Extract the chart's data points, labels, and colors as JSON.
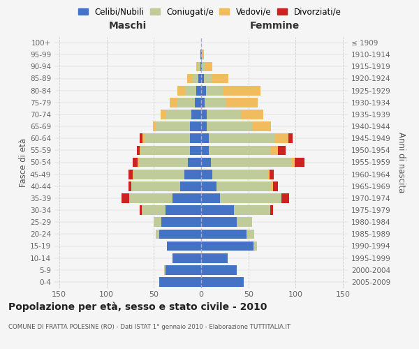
{
  "age_groups": [
    "0-4",
    "5-9",
    "10-14",
    "15-19",
    "20-24",
    "25-29",
    "30-34",
    "35-39",
    "40-44",
    "45-49",
    "50-54",
    "55-59",
    "60-64",
    "65-69",
    "70-74",
    "75-79",
    "80-84",
    "85-89",
    "90-94",
    "95-99",
    "100+"
  ],
  "birth_years": [
    "2005-2009",
    "2000-2004",
    "1995-1999",
    "1990-1994",
    "1985-1989",
    "1980-1984",
    "1975-1979",
    "1970-1974",
    "1965-1969",
    "1960-1964",
    "1955-1959",
    "1950-1954",
    "1945-1949",
    "1940-1944",
    "1935-1939",
    "1930-1934",
    "1925-1929",
    "1920-1924",
    "1915-1919",
    "1910-1914",
    "≤ 1909"
  ],
  "colors": {
    "celibi": "#4472C4",
    "coniugati": "#BFCC99",
    "vedovi": "#F0BC5E",
    "divorziati": "#CC2222"
  },
  "male": {
    "celibi": [
      44,
      38,
      30,
      36,
      44,
      42,
      38,
      30,
      22,
      18,
      14,
      12,
      12,
      12,
      10,
      7,
      5,
      3,
      1,
      1,
      0
    ],
    "coniugati": [
      0,
      1,
      0,
      0,
      4,
      8,
      25,
      46,
      52,
      53,
      52,
      52,
      48,
      36,
      28,
      18,
      12,
      6,
      2,
      0,
      0
    ],
    "vedovi": [
      0,
      0,
      0,
      0,
      0,
      0,
      0,
      0,
      0,
      1,
      1,
      1,
      2,
      3,
      5,
      8,
      8,
      6,
      2,
      0,
      0
    ],
    "divorziati": [
      0,
      0,
      0,
      0,
      0,
      0,
      2,
      8,
      3,
      5,
      5,
      3,
      3,
      0,
      0,
      0,
      0,
      0,
      0,
      0,
      0
    ]
  },
  "female": {
    "celibi": [
      45,
      38,
      28,
      55,
      48,
      38,
      35,
      20,
      16,
      12,
      10,
      8,
      8,
      6,
      6,
      4,
      5,
      3,
      1,
      1,
      0
    ],
    "coniugati": [
      0,
      0,
      0,
      4,
      8,
      16,
      38,
      65,
      58,
      58,
      85,
      65,
      70,
      48,
      36,
      22,
      18,
      8,
      3,
      0,
      0
    ],
    "vedovi": [
      0,
      0,
      0,
      0,
      0,
      0,
      0,
      0,
      2,
      2,
      4,
      8,
      14,
      20,
      24,
      34,
      40,
      18,
      8,
      2,
      0
    ],
    "divorziati": [
      0,
      0,
      0,
      0,
      0,
      0,
      3,
      8,
      5,
      5,
      10,
      8,
      5,
      0,
      0,
      0,
      0,
      0,
      0,
      0,
      0
    ]
  },
  "title": "Popolazione per età, sesso e stato civile - 2010",
  "subtitle": "COMUNE DI FRATTA POLESINE (RO) - Dati ISTAT 1° gennaio 2010 - Elaborazione TUTTITALIA.IT",
  "xlabel_left": "Maschi",
  "xlabel_right": "Femmine",
  "ylabel_left": "Fasce di età",
  "ylabel_right": "Anni di nascita",
  "xlim": 155,
  "bg_color": "#F5F5F5",
  "grid_color": "#CCCCCC",
  "legend_labels": [
    "Celibi/Nubili",
    "Coniugati/e",
    "Vedovi/e",
    "Divorziati/e"
  ]
}
